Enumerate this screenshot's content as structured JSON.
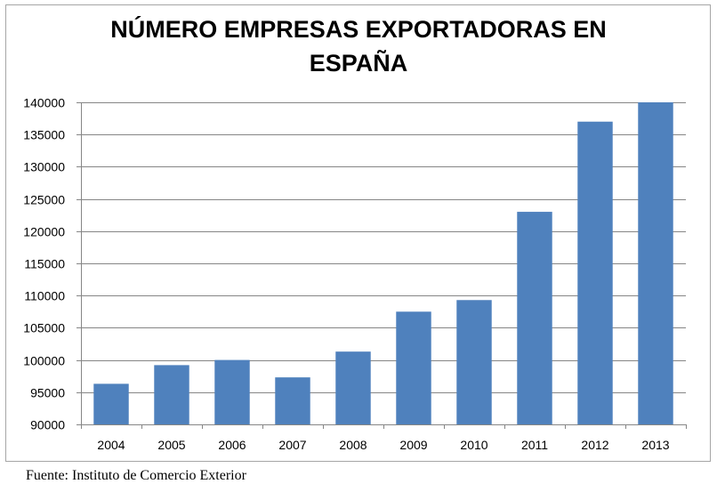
{
  "chart_data": {
    "type": "bar",
    "title": "NÚMERO EMPRESAS EXPORTADORAS EN ESPAÑA",
    "title_lines": [
      "NÚMERO EMPRESAS EXPORTADORAS EN",
      "ESPAÑA"
    ],
    "categories": [
      "2004",
      "2005",
      "2006",
      "2007",
      "2008",
      "2009",
      "2010",
      "2011",
      "2012",
      "2013"
    ],
    "values": [
      96300,
      99200,
      100000,
      97300,
      101300,
      107500,
      109300,
      123000,
      137000,
      140000
    ],
    "ylim": [
      90000,
      140000
    ],
    "yticks": [
      "90000",
      "95000",
      "100000",
      "105000",
      "110000",
      "115000",
      "120000",
      "125000",
      "130000",
      "135000",
      "140000"
    ],
    "xlabel": "",
    "ylabel": "",
    "grid": true,
    "legend": "none",
    "bar_color": "#4f81bd",
    "grid_color": "#868686"
  },
  "source_note": "Fuente: Instituto de Comercio Exterior"
}
